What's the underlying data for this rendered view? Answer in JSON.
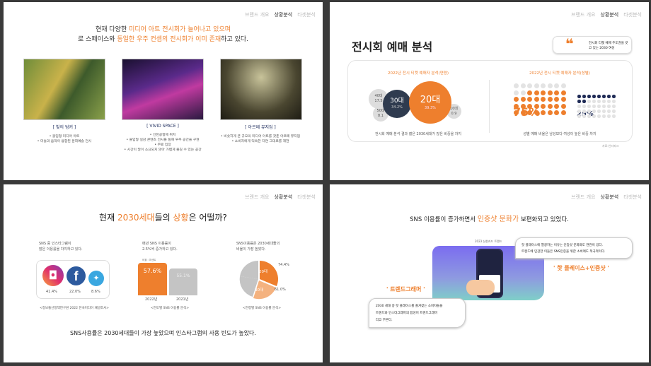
{
  "nav": [
    "브랜드 개요",
    "상황분석",
    "타겟분석"
  ],
  "colors": {
    "accent": "#ee7f2d",
    "navy": "#2f3b4f",
    "grey": "#cfcfcf"
  },
  "slide1": {
    "title_line1": [
      "현재 다양한 ",
      "미디어 아트 전시회가 늘어나고 있으며"
    ],
    "title_line2": [
      "로 스페이스와 ",
      "동일한 우주 컨셉의 전시회가 이미 존재",
      "하고 있다."
    ],
    "cards": [
      {
        "name": "[ 빛의 벙커 ]",
        "bullets": [
          "• 몰입형 미디어 아트",
          "• 미술과 음악이 융합된 문화예술 전시"
        ]
      },
      {
        "name": "[ VIVID SPACE ]",
        "bullets": [
          "• 인천공항에 위치",
          "• 몰입형 실감 콘텐츠 전시를 통해 우주 공간을 구현",
          "• 무료 입장",
          "• 시간이 많이 소요되지 않아 가볍게 즐길 수 있는 공간"
        ]
      },
      {
        "name": "[ 아르떼 뮤지엄 ]",
        "bullets": [
          "• 비슷하게 큰 규모의 미디어 아트를 갖춘 아르떼 뮤지엄",
          "• 소비자에게 익숙한 자연 그대로를 재현"
        ]
      }
    ]
  },
  "slide2": {
    "title": "전시회 예매 분석",
    "quote": "전시회 티켓 예매 주도권을 갖고 있는 2030 여성",
    "age_title": "2022년 전시 티켓 예매자 분석(연령)",
    "ages": [
      {
        "label": "40대",
        "value": "17.5"
      },
      {
        "label": "30대",
        "value": "34.2%"
      },
      {
        "label": "20대",
        "value": "39.3%"
      },
      {
        "label": "50대",
        "value": "8.1"
      },
      {
        "label": "10대",
        "value": "0.9"
      }
    ],
    "age_caption": "전시회 예매 분석 결과 젊은 2030세대가 많은 비중을 차지",
    "gender_title": "2022년 전시 티켓 예매자 분석(성별)",
    "female": "75%",
    "male": "25%",
    "gender_caption": "성별 예매 비율은 남성보다 여성이 높은 비중 차지",
    "source": "자료:인터파크"
  },
  "slide3": {
    "title": [
      "현재 ",
      "2030세대",
      "들의 ",
      "상황",
      "은 어떨까?"
    ],
    "col1": {
      "text": [
        "SNS 중 인스타그램이",
        "많은 이용률을 차지하고 있다."
      ],
      "values": [
        "41.4%",
        "22.0%",
        "8.6%"
      ],
      "source": "<정보통신정책연구원 2022 한국미디어 패널조사>"
    },
    "col2": {
      "text": [
        "매년 SNS 이용률이",
        "2.5%씩 증가하고 있다."
      ],
      "unit": "비율 : 퍼센트",
      "bars": [
        {
          "year": "2022년",
          "value": "57.6%"
        },
        {
          "year": "2021년",
          "value": "55.1%"
        }
      ],
      "source": "<연도별 SNS 이용률 분석>"
    },
    "col3": {
      "text": [
        "SNS이용률은 2030세대들의",
        "비율이 가장 높았다."
      ],
      "slices": [
        {
          "label": "20대",
          "value": "74.4%"
        },
        {
          "label": "30대",
          "value": "61.0%"
        }
      ],
      "source": "<연령별 SNS 이용률 분석>"
    },
    "summary": "SNS사용률은 2030세대들이 가장 높았으며 인스타그램의 사용 빈도가 높았다."
  },
  "slide4": {
    "title": [
      "SNS 이용률이 증가하면서 ",
      "인증샷 문화가",
      " 보편화되고 있었다."
    ],
    "image_label": "2023 신한카드 트렌드",
    "bubble1": [
      "핫 플레이스에 열광하는 이유는 인증샷 문화와도 연관이 있다.",
      "트렌드에 민감한 이들은 SNS인증을 위한 소비에도 적극적이다."
    ],
    "keyword1": "' 핫 플레이스+인증샷 '",
    "keyword2": "' 트렌드그래머 '",
    "bubble2": [
      "2030 세대 중 핫 플레이스를 즐겨찾는 소비자들을",
      "트렌드와 인스타그래머의 합성어 트렌드그래머",
      "라고 부른다."
    ]
  }
}
